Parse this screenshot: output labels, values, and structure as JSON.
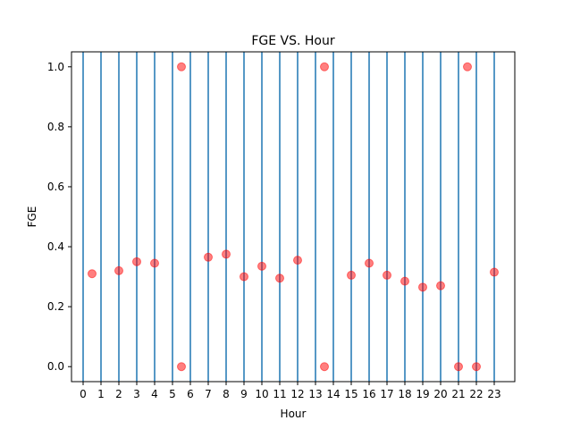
{
  "chart_data": {
    "type": "scatter",
    "title": "FGE VS. Hour",
    "xlabel": "Hour",
    "ylabel": "FGE",
    "xlim": [
      -0.65,
      24.15
    ],
    "ylim": [
      -0.05,
      1.05
    ],
    "x_ticks": [
      0,
      1,
      2,
      3,
      4,
      5,
      6,
      7,
      8,
      9,
      10,
      11,
      12,
      13,
      14,
      15,
      16,
      17,
      18,
      19,
      20,
      21,
      22,
      23
    ],
    "y_ticks": [
      0.0,
      0.2,
      0.4,
      0.6,
      0.8,
      1.0
    ],
    "y_tick_labels": [
      "0.0",
      "0.2",
      "0.4",
      "0.6",
      "0.8",
      "1.0"
    ],
    "vertical_lines_at": [
      0,
      1,
      2,
      3,
      4,
      5,
      6,
      7,
      8,
      9,
      10,
      11,
      12,
      13,
      14,
      15,
      16,
      17,
      18,
      19,
      20,
      21,
      22,
      23
    ],
    "vline_color": "#1f77b4",
    "point_color": "#ff0000",
    "grid": false,
    "legend": "none",
    "points": [
      {
        "x": 0.5,
        "y": 0.31
      },
      {
        "x": 2.0,
        "y": 0.32
      },
      {
        "x": 3.0,
        "y": 0.35
      },
      {
        "x": 4.0,
        "y": 0.345
      },
      {
        "x": 5.5,
        "y": 1.0
      },
      {
        "x": 5.5,
        "y": 0.0
      },
      {
        "x": 7.0,
        "y": 0.365
      },
      {
        "x": 8.0,
        "y": 0.375
      },
      {
        "x": 9.0,
        "y": 0.3
      },
      {
        "x": 10.0,
        "y": 0.335
      },
      {
        "x": 11.0,
        "y": 0.295
      },
      {
        "x": 12.0,
        "y": 0.355
      },
      {
        "x": 13.5,
        "y": 1.0
      },
      {
        "x": 13.5,
        "y": 0.0
      },
      {
        "x": 15.0,
        "y": 0.305
      },
      {
        "x": 16.0,
        "y": 0.345
      },
      {
        "x": 17.0,
        "y": 0.305
      },
      {
        "x": 18.0,
        "y": 0.285
      },
      {
        "x": 19.0,
        "y": 0.265
      },
      {
        "x": 20.0,
        "y": 0.27
      },
      {
        "x": 21.0,
        "y": 0.0
      },
      {
        "x": 21.5,
        "y": 1.0
      },
      {
        "x": 22.0,
        "y": 0.0
      },
      {
        "x": 23.0,
        "y": 0.315
      }
    ]
  }
}
